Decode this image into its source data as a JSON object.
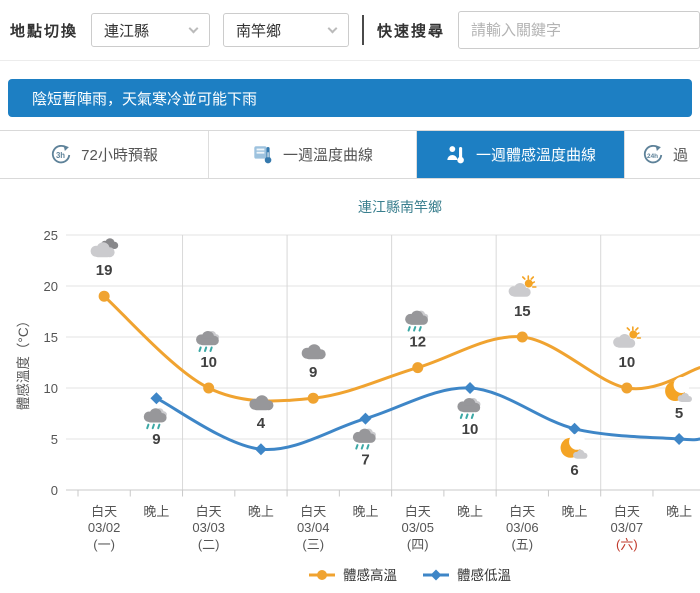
{
  "header": {
    "location_label": "地點切換",
    "county_value": "連江縣",
    "town_value": "南竿鄉",
    "search_label": "快速搜尋",
    "search_placeholder": "請輸入關鍵字"
  },
  "banner": {
    "text": "陰短暫陣雨，天氣寒冷並可能下雨",
    "bg": "#1d7fc3"
  },
  "tabs": [
    {
      "label": "72小時預報",
      "icon": "clock-3h",
      "icon_label": "3h",
      "active": false
    },
    {
      "label": "一週溫度曲線",
      "icon": "thermometer",
      "icon_label": "",
      "active": false
    },
    {
      "label": "一週體感溫度曲線",
      "icon": "person-thermometer",
      "icon_label": "",
      "active": true
    },
    {
      "label": "過",
      "icon": "clock-24h",
      "icon_label": "24h",
      "active": false
    }
  ],
  "colors": {
    "accent_blue": "#1d7fc3",
    "high_series": "#f0a330",
    "low_series": "#3e86c7",
    "chart_title": "#3a7f8e",
    "holiday_red": "#c0392b",
    "grid": "#e3e3e3",
    "axis": "#c9c9c9",
    "label_text": "#555555",
    "value_text": "#404040",
    "cloud_gray": "#97979a",
    "cloud_dark": "#88888b",
    "cloud_light": "#cbcbce",
    "rain_drop": "#3ba8a5",
    "sun_moon": "#f4a425"
  },
  "chart_data": {
    "type": "line",
    "title": "連江縣南竿鄉",
    "ylabel": "體感溫度（°C）",
    "ylim": [
      0,
      25
    ],
    "yticks": [
      0,
      5,
      10,
      15,
      20,
      25
    ],
    "grid": true,
    "legend_position": "bottom",
    "period_labels": [
      "白天",
      "晚上"
    ],
    "x_groups": [
      {
        "date": "03/02",
        "weekday": "(一)",
        "holiday": false
      },
      {
        "date": "03/03",
        "weekday": "(二)",
        "holiday": false
      },
      {
        "date": "03/04",
        "weekday": "(三)",
        "holiday": false
      },
      {
        "date": "03/05",
        "weekday": "(四)",
        "holiday": false
      },
      {
        "date": "03/06",
        "weekday": "(五)",
        "holiday": false
      },
      {
        "date": "03/07",
        "weekday": "(六)",
        "holiday": true
      }
    ],
    "series": [
      {
        "name": "體感高溫",
        "color": "#f0a330",
        "marker": "circle",
        "edge_value": 12,
        "points": [
          {
            "slot": 0,
            "period": "03/02 白天",
            "value": 19,
            "icon": "cloudy",
            "icon_pos": "above"
          },
          {
            "slot": 2,
            "period": "03/03 白天",
            "value": 10,
            "icon": "rain",
            "icon_pos": "above"
          },
          {
            "slot": 4,
            "period": "03/04 白天",
            "value": 9,
            "icon": "cloud",
            "icon_pos": "above"
          },
          {
            "slot": 6,
            "period": "03/05 白天",
            "value": 12,
            "icon": "rain",
            "icon_pos": "above"
          },
          {
            "slot": 8,
            "period": "03/06 白天",
            "value": 15,
            "icon": "partly-sunny",
            "icon_pos": "above"
          },
          {
            "slot": 10,
            "period": "03/07 白天",
            "value": 10,
            "icon": "partly-sunny",
            "icon_pos": "above"
          }
        ]
      },
      {
        "name": "體感低溫",
        "color": "#3e86c7",
        "marker": "diamond",
        "edge_value": 5,
        "points": [
          {
            "slot": 1,
            "period": "03/02 晚上",
            "value": 9,
            "icon": "rain",
            "icon_pos": "below"
          },
          {
            "slot": 3,
            "period": "03/03 晚上",
            "value": 4,
            "icon": "cloud",
            "icon_pos": "above"
          },
          {
            "slot": 5,
            "period": "03/04 晚上",
            "value": 7,
            "icon": "rain",
            "icon_pos": "below"
          },
          {
            "slot": 7,
            "period": "03/05 晚上",
            "value": 10,
            "icon": "rain",
            "icon_pos": "below"
          },
          {
            "slot": 9,
            "period": "03/06 晚上",
            "value": 6,
            "icon": "moon-cloud",
            "icon_pos": "below"
          },
          {
            "slot": 11,
            "period": "03/07 晚上",
            "value": 5,
            "icon": "moon-cloud",
            "icon_pos": "above"
          }
        ]
      }
    ]
  }
}
